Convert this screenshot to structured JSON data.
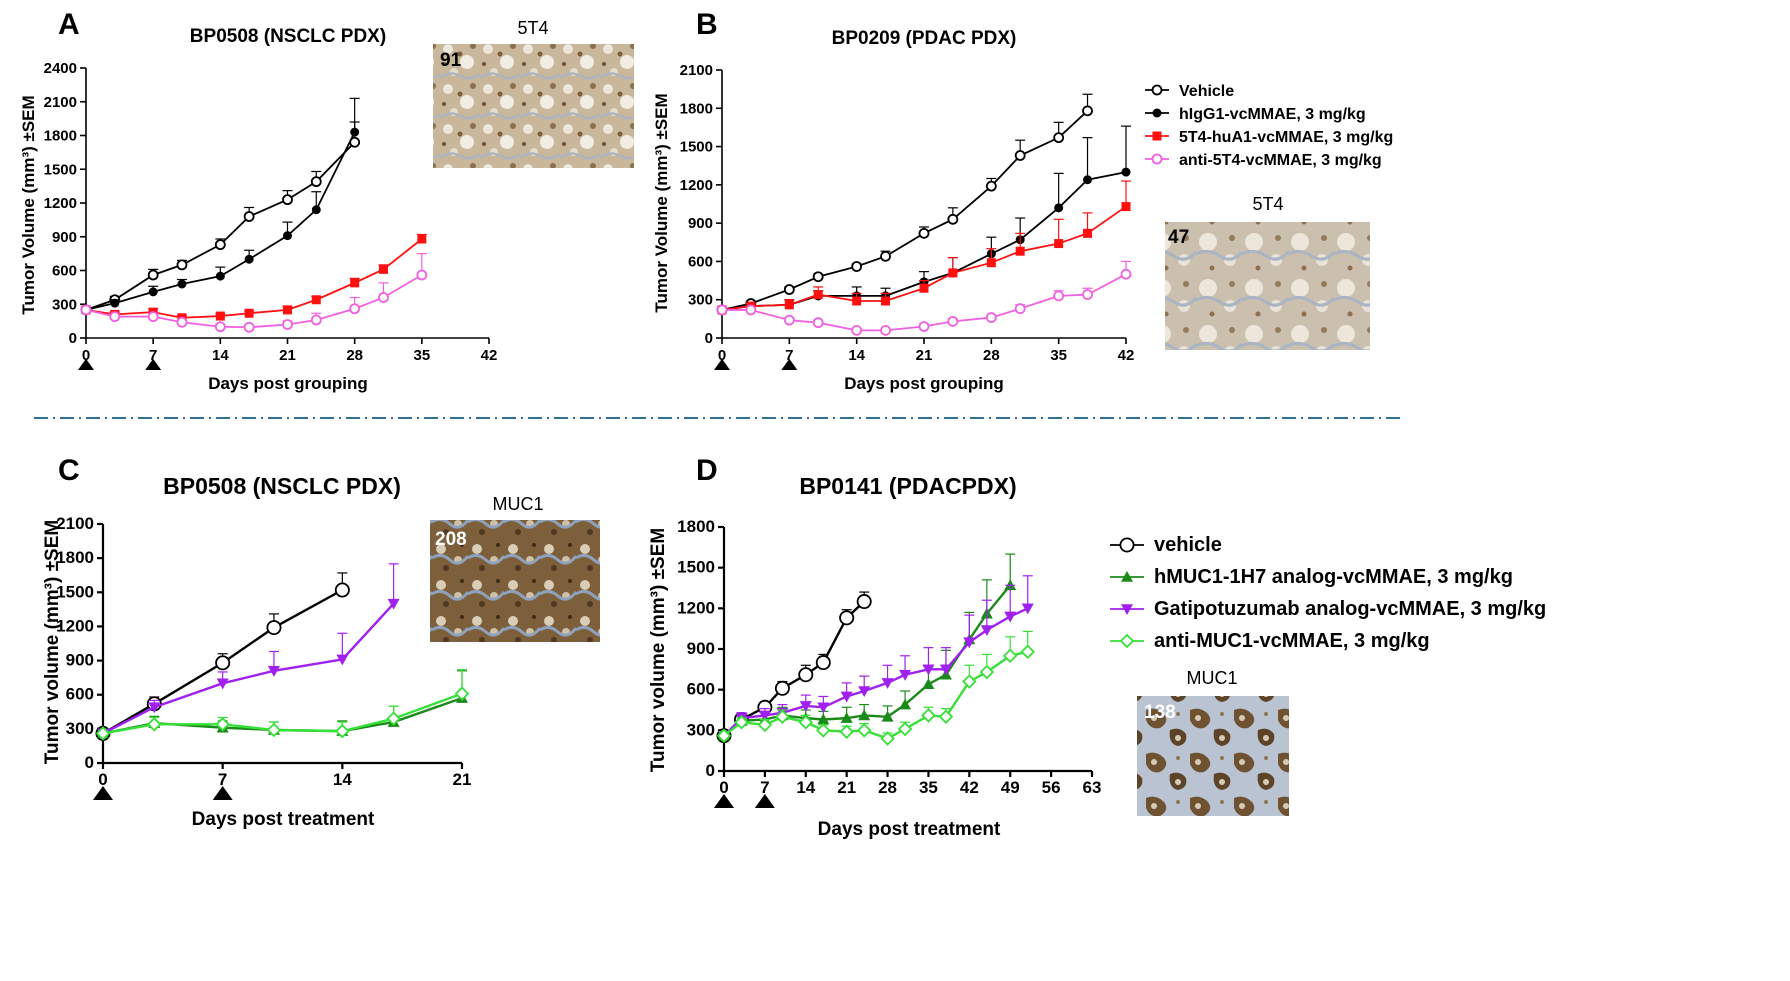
{
  "panels": [
    {
      "letter": "A",
      "chart_data": {
        "type": "line",
        "title": "BP0508 (NSCLC PDX)",
        "xlabel": "Days post grouping",
        "ylabel": "Tumor Volume  (mm³) ±SEM",
        "xlim": [
          0,
          42
        ],
        "ylim": [
          0,
          2400
        ],
        "xticks": [
          0,
          7,
          14,
          21,
          28,
          35,
          42
        ],
        "yticks": [
          0,
          300,
          600,
          900,
          1200,
          1500,
          1800,
          2100,
          2400
        ],
        "dosing_days": [
          0,
          7
        ],
        "grid": false,
        "series": [
          {
            "name": "Vehicle",
            "color": "#000000",
            "marker": "open-circle",
            "x": [
              0,
              3,
              7,
              10,
              14,
              17,
              21,
              24,
              28
            ],
            "y": [
              250,
              340,
              560,
              650,
              830,
              1080,
              1230,
              1390,
              1740
            ],
            "sem": [
              30,
              30,
              50,
              40,
              50,
              80,
              80,
              90,
              180
            ]
          },
          {
            "name": "hIgG1-vcMMAE, 3 mg/kg",
            "color": "#000000",
            "marker": "filled-circle",
            "x": [
              0,
              3,
              7,
              10,
              14,
              17,
              21,
              24,
              28
            ],
            "y": [
              250,
              310,
              410,
              480,
              550,
              700,
              910,
              1140,
              1830
            ],
            "sem": [
              30,
              30,
              50,
              40,
              80,
              80,
              120,
              160,
              300
            ]
          },
          {
            "name": "5T4-huA1-vcMMAE, 3 mg/kg",
            "color": "#ff1010",
            "marker": "filled-square",
            "x": [
              0,
              3,
              7,
              10,
              14,
              17,
              21,
              24,
              28,
              31,
              35
            ],
            "y": [
              250,
              210,
              230,
              180,
              195,
              220,
              250,
              340,
              490,
              610,
              880
            ],
            "sem": [
              30,
              20,
              30,
              20,
              20,
              20,
              30,
              30,
              40,
              40,
              40
            ]
          },
          {
            "name": "anti-5T4-vcMMAE, 3 mg/kg",
            "color": "#f060e0",
            "marker": "open-circle",
            "x": [
              0,
              3,
              7,
              10,
              14,
              17,
              21,
              24,
              28,
              31,
              35
            ],
            "y": [
              250,
              190,
              190,
              140,
              100,
              95,
              120,
              160,
              260,
              360,
              560
            ],
            "sem": [
              30,
              20,
              30,
              20,
              20,
              20,
              30,
              60,
              100,
              130,
              190
            ]
          }
        ]
      },
      "ihc": {
        "label": "5T4",
        "score": "91"
      }
    },
    {
      "letter": "B",
      "chart_data": {
        "type": "line",
        "title": "BP0209 (PDAC PDX)",
        "xlabel": "Days post grouping",
        "ylabel": "Tumor Volume  (mm³) ±SEM",
        "xlim": [
          0,
          42
        ],
        "ylim": [
          0,
          2100
        ],
        "xticks": [
          0,
          7,
          14,
          21,
          28,
          35,
          42
        ],
        "yticks": [
          0,
          300,
          600,
          900,
          1200,
          1500,
          1800,
          2100
        ],
        "dosing_days": [
          0,
          7
        ],
        "grid": false,
        "legend": "right",
        "series": [
          {
            "name": "Vehicle",
            "color": "#000000",
            "marker": "open-circle",
            "x": [
              0,
              3,
              7,
              10,
              14,
              17,
              21,
              24,
              28,
              31,
              35,
              38
            ],
            "y": [
              220,
              270,
              380,
              480,
              560,
              640,
              820,
              930,
              1190,
              1430,
              1570,
              1780
            ],
            "sem": [
              20,
              20,
              20,
              20,
              20,
              40,
              50,
              90,
              60,
              120,
              120,
              130
            ]
          },
          {
            "name": "hIgG1-vcMMAE, 3 mg/kg",
            "color": "#000000",
            "marker": "filled-circle",
            "x": [
              0,
              3,
              7,
              10,
              14,
              17,
              21,
              24,
              28,
              31,
              35,
              38,
              42
            ],
            "y": [
              220,
              250,
              260,
              330,
              330,
              330,
              440,
              510,
              660,
              770,
              1020,
              1240,
              1300
            ],
            "sem": [
              20,
              20,
              40,
              40,
              70,
              60,
              80,
              120,
              130,
              170,
              270,
              330,
              360
            ]
          },
          {
            "name": "5T4-huA1-vcMMAE, 3 mg/kg",
            "color": "#ff1010",
            "marker": "filled-square",
            "x": [
              0,
              3,
              7,
              10,
              14,
              17,
              21,
              24,
              28,
              31,
              35,
              38,
              42
            ],
            "y": [
              220,
              250,
              260,
              340,
              290,
              290,
              390,
              510,
              590,
              680,
              740,
              820,
              1030
            ],
            "sem": [
              20,
              20,
              40,
              60,
              60,
              60,
              60,
              120,
              110,
              140,
              190,
              160,
              200
            ]
          },
          {
            "name": "anti-5T4-vcMMAE, 3 mg/kg",
            "color": "#f060e0",
            "marker": "open-circle",
            "x": [
              0,
              3,
              7,
              10,
              14,
              17,
              21,
              24,
              28,
              31,
              35,
              38,
              42
            ],
            "y": [
              220,
              220,
              140,
              120,
              60,
              60,
              90,
              130,
              160,
              230,
              330,
              340,
              500
            ],
            "sem": [
              20,
              20,
              20,
              20,
              10,
              10,
              20,
              20,
              20,
              30,
              40,
              50,
              100
            ]
          }
        ]
      },
      "ihc": {
        "label": "5T4",
        "score": "47"
      }
    },
    {
      "letter": "C",
      "chart_data": {
        "type": "line",
        "title": "BP0508 (NSCLC PDX)",
        "xlabel": "Days post treatment",
        "ylabel": "Tumor volume (mm³) ±SEM",
        "xlim": [
          0,
          21
        ],
        "ylim": [
          0,
          2100
        ],
        "xticks": [
          0,
          7,
          14,
          21
        ],
        "yticks": [
          0,
          300,
          600,
          900,
          1200,
          1500,
          1800,
          2100
        ],
        "dosing_days": [
          0,
          7
        ],
        "grid": false,
        "series": [
          {
            "name": "vehicle",
            "color": "#000000",
            "marker": "open-circle-large",
            "x": [
              0,
              3,
              7,
              10,
              14
            ],
            "y": [
              260,
              520,
              880,
              1190,
              1520
            ],
            "sem": [
              20,
              60,
              80,
              120,
              150
            ]
          },
          {
            "name": "Gatipotuzumab analog-vcMMAE, 3 mg/kg",
            "color": "#a020f0",
            "marker": "down-triangle",
            "x": [
              0,
              3,
              7,
              10,
              14,
              17
            ],
            "y": [
              260,
              490,
              700,
              810,
              910,
              1400
            ],
            "sem": [
              20,
              60,
              100,
              170,
              230,
              350
            ]
          },
          {
            "name": "hMUC1-1H7 analog-vcMMAE, 3 mg/kg",
            "color": "#1a8a1a",
            "marker": "up-triangle",
            "x": [
              0,
              3,
              7,
              10,
              14,
              17,
              21
            ],
            "y": [
              260,
              350,
              310,
              290,
              280,
              360,
              570
            ],
            "sem": [
              20,
              60,
              60,
              70,
              90,
              140,
              240
            ]
          },
          {
            "name": "anti-MUC1-vcMMAE, 3 mg/kg",
            "color": "#36e036",
            "marker": "open-diamond",
            "x": [
              0,
              3,
              7,
              10,
              14,
              17,
              21
            ],
            "y": [
              260,
              340,
              340,
              290,
              280,
              390,
              610
            ],
            "sem": [
              20,
              60,
              60,
              70,
              80,
              110,
              210
            ]
          }
        ]
      },
      "ihc": {
        "label": "MUC1",
        "score": "208"
      }
    },
    {
      "letter": "D",
      "chart_data": {
        "type": "line",
        "title": "BP0141 (PDACPDX)",
        "xlabel": "Days post treatment",
        "ylabel": "Tumor volume (mm³) ±SEM",
        "xlim": [
          0,
          63
        ],
        "ylim": [
          0,
          1800
        ],
        "xticks": [
          0,
          7,
          14,
          21,
          28,
          35,
          42,
          49,
          56,
          63
        ],
        "yticks": [
          0,
          300,
          600,
          900,
          1200,
          1500,
          1800
        ],
        "dosing_days": [
          0,
          7
        ],
        "grid": false,
        "legend": "right",
        "series": [
          {
            "name": "vehicle",
            "color": "#000000",
            "marker": "open-circle-large",
            "x": [
              0,
              3,
              7,
              10,
              14,
              17,
              21,
              24
            ],
            "y": [
              260,
              380,
              470,
              610,
              710,
              800,
              1130,
              1250
            ],
            "sem": [
              30,
              40,
              40,
              50,
              70,
              60,
              60,
              70
            ]
          },
          {
            "name": "hMUC1-1H7 analog-vcMMAE, 3 mg/kg",
            "color": "#1a8a1a",
            "marker": "up-triangle",
            "x": [
              0,
              3,
              7,
              10,
              14,
              17,
              21,
              24,
              28,
              31,
              35,
              38,
              42,
              45,
              49
            ],
            "y": [
              260,
              370,
              380,
              410,
              390,
              380,
              390,
              410,
              400,
              490,
              640,
              710,
              970,
              1160,
              1370
            ],
            "sem": [
              30,
              40,
              50,
              60,
              60,
              60,
              80,
              80,
              80,
              100,
              130,
              180,
              200,
              250,
              230
            ]
          },
          {
            "name": "Gatipotuzumab analog-vcMMAE, 3 mg/kg",
            "color": "#a020f0",
            "marker": "down-triangle",
            "x": [
              0,
              3,
              7,
              10,
              14,
              17,
              21,
              24,
              28,
              31,
              35,
              38,
              42,
              45,
              49,
              52
            ],
            "y": [
              260,
              390,
              410,
              430,
              480,
              470,
              550,
              590,
              650,
              710,
              750,
              750,
              950,
              1040,
              1140,
              1200
            ],
            "sem": [
              30,
              40,
              50,
              60,
              80,
              80,
              100,
              110,
              130,
              140,
              160,
              160,
              200,
              220,
              230,
              240
            ]
          },
          {
            "name": "anti-MUC1-vcMMAE, 3 mg/kg",
            "color": "#36e036",
            "marker": "open-diamond",
            "x": [
              0,
              3,
              7,
              10,
              14,
              17,
              21,
              24,
              28,
              31,
              35,
              38,
              42,
              45,
              49,
              52
            ],
            "y": [
              260,
              360,
              340,
              400,
              360,
              300,
              290,
              300,
              240,
              310,
              410,
              400,
              660,
              730,
              850,
              880
            ],
            "sem": [
              30,
              30,
              40,
              50,
              50,
              40,
              40,
              50,
              40,
              50,
              60,
              60,
              120,
              130,
              140,
              150
            ]
          }
        ]
      },
      "ihc": {
        "label": "MUC1",
        "score": "138"
      }
    }
  ]
}
